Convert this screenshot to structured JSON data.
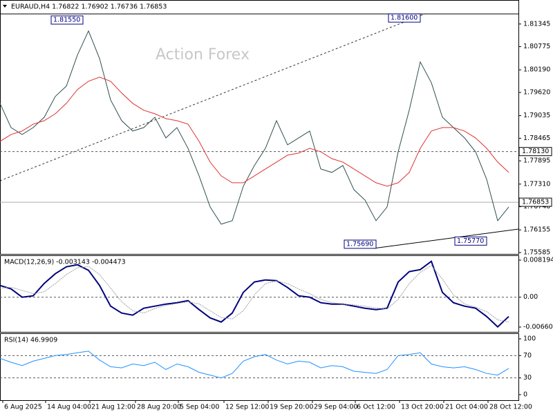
{
  "chart_data": [
    {
      "type": "line",
      "title": "EURAUD,H4  1.76822 1.76902 1.76736 1.76853",
      "watermark": "Action Forex",
      "xlim": [
        0,
        187.5
      ],
      "ylim": [
        1.7555,
        1.8195
      ],
      "yticks": [
        1.81345,
        1.80775,
        {
          "value": 1.8019,
          "label": "1.80190"
        },
        {
          "value": 1.7962,
          "label": "1.79620"
        },
        1.79035,
        1.78465,
        1.77895,
        {
          "value": 1.7731,
          "label": "1.77310"
        },
        {
          "value": 1.7674,
          "label": "1.76740"
        },
        1.76155,
        1.75585
      ],
      "x": [
        0,
        4,
        8,
        12,
        16,
        20,
        24,
        28,
        32,
        36,
        40,
        44,
        48,
        52,
        56,
        60,
        64,
        68,
        72,
        76,
        80,
        84,
        88,
        92,
        96,
        100,
        104,
        108,
        112,
        116,
        120,
        124,
        128,
        132,
        136,
        140,
        144,
        148,
        152,
        156,
        160,
        164,
        168,
        172,
        176,
        180,
        184
      ],
      "series": [
        {
          "color": "#2f4f4f",
          "values": [
            1.79344,
            1.78735,
            1.78561,
            1.78735,
            1.78996,
            1.79518,
            1.79779,
            1.80562,
            1.81171,
            1.80475,
            1.79431,
            1.78909,
            1.78648,
            1.78735,
            1.78996,
            1.78474,
            1.78735,
            1.78213,
            1.77517,
            1.76734,
            1.76299,
            1.76386,
            1.77256,
            1.77778,
            1.78213,
            1.78909,
            1.783,
            1.78474,
            1.78648,
            1.77691,
            1.77604,
            1.77778,
            1.77169,
            1.76908,
            1.76386,
            1.76734,
            1.78126,
            1.7917,
            1.80388,
            1.79866,
            1.78996,
            1.78735,
            1.78474,
            1.78126,
            1.7743,
            1.76386,
            1.76734
          ]
        },
        {
          "color": "#e03030",
          "values": [
            1.78387,
            1.78561,
            1.78648,
            1.78822,
            1.78909,
            1.79083,
            1.79344,
            1.79692,
            1.79901,
            1.80005,
            1.79901,
            1.79605,
            1.79344,
            1.7917,
            1.79083,
            1.78961,
            1.78909,
            1.78822,
            1.78387,
            1.77865,
            1.77517,
            1.77343,
            1.77343,
            1.77517,
            1.77691,
            1.77865,
            1.78039,
            1.78091,
            1.78213,
            1.78126,
            1.77952,
            1.77865,
            1.77691,
            1.77517,
            1.77343,
            1.77256,
            1.77343,
            1.77604,
            1.78213,
            1.78648,
            1.78735,
            1.78735,
            1.78648,
            1.78474,
            1.78213,
            1.77865,
            1.77604
          ]
        }
      ],
      "levels": [
        {
          "value": 1.816,
          "style": "solid"
        },
        {
          "value": 1.7813,
          "label": "1.78130",
          "style": "dashed"
        },
        {
          "value": 1.76853,
          "label": "1.76853",
          "style": "current"
        }
      ],
      "annotations": [
        {
          "x": 30,
          "value": 1.8155,
          "label": "1.81550"
        },
        {
          "x": 152,
          "value": 1.816,
          "label": "1.81600"
        },
        {
          "x": 136,
          "value": 1.7569,
          "label": "1.75690"
        },
        {
          "x": 176,
          "value": 1.7577,
          "label": "1.75770"
        }
      ]
    },
    {
      "type": "line",
      "title": "MACD(12,26,9) -0.003143 -0.004473",
      "xlim": [
        0,
        187.5
      ],
      "ylim": [
        -0.00767,
        0.00926
      ],
      "yticks": [
        0.008194,
        {
          "value": 0,
          "label": "0.00"
        },
        -0.006604
      ],
      "x": [
        0,
        4,
        8,
        12,
        16,
        20,
        24,
        28,
        32,
        36,
        40,
        44,
        48,
        52,
        56,
        60,
        64,
        68,
        72,
        76,
        80,
        84,
        88,
        92,
        96,
        100,
        104,
        108,
        112,
        116,
        120,
        124,
        128,
        132,
        136,
        140,
        144,
        148,
        152,
        156,
        160,
        164,
        168,
        172,
        176,
        180,
        184
      ],
      "series": [
        {
          "color": "#00007f",
          "values": [
            0.00259,
            0.00183,
            0,
            0.00031,
            0.00305,
            0.00519,
            0.00671,
            0.00717,
            0.00595,
            0.00259,
            -0.00198,
            -0.00351,
            -0.00397,
            -0.00244,
            -0.00198,
            -0.00153,
            -0.00122,
            -0.00076,
            -0.00275,
            -0.00458,
            -0.00549,
            -0.00351,
            0.00107,
            0.00336,
            0.00381,
            0.00366,
            0.00214,
            0.00031,
            0,
            -0.00122,
            -0.00153,
            -0.00153,
            -0.00198,
            -0.00244,
            -0.00275,
            -0.00244,
            0.00336,
            0.00564,
            0.0061,
            0.00793,
            0.00107,
            -0.00122,
            -0.00198,
            -0.00244,
            -0.00427,
            -0.00656,
            -0.00427
          ]
        },
        {
          "color": "#a0a0a0",
          "values": [
            0.002,
            0.0022,
            0.0015,
            0.0008,
            0.0012,
            0.003,
            0.005,
            0.0065,
            0.0068,
            0.005,
            0.002,
            -0.001,
            -0.003,
            -0.0035,
            -0.0025,
            -0.0018,
            -0.0014,
            -0.001,
            -0.0015,
            -0.003,
            -0.0045,
            -0.0048,
            -0.003,
            0.0005,
            0.003,
            0.0036,
            0.003,
            0.0018,
            0.0008,
            -0.0005,
            -0.0012,
            -0.0015,
            -0.0017,
            -0.002,
            -0.0024,
            -0.0026,
            -0.0005,
            0.003,
            0.0055,
            0.007,
            0.004,
            0.0005,
            -0.0015,
            -0.0022,
            -0.0032,
            -0.005,
            -0.0055
          ]
        }
      ],
      "levels": [
        {
          "value": 0,
          "style": "dashed"
        }
      ]
    },
    {
      "type": "line",
      "title": "RSI(14) 46.9909",
      "xlim": [
        0,
        187.5
      ],
      "ylim": [
        -10,
        110
      ],
      "yticks": [
        100,
        70,
        30,
        0
      ],
      "x": [
        0,
        4,
        8,
        12,
        16,
        20,
        24,
        28,
        32,
        36,
        40,
        44,
        48,
        52,
        56,
        60,
        64,
        68,
        72,
        76,
        80,
        84,
        88,
        92,
        96,
        100,
        104,
        108,
        112,
        116,
        120,
        124,
        128,
        132,
        136,
        140,
        144,
        148,
        152,
        156,
        160,
        164,
        168,
        172,
        176,
        180,
        184
      ],
      "xticks": [
        {
          "value": 1,
          "label": "6 Aug 2025"
        },
        {
          "value": 16.5,
          "label": "14 Aug 04:00"
        },
        {
          "value": 32.5,
          "label": "21 Aug 12:00"
        },
        {
          "value": 49,
          "label": "28 Aug 20:00"
        },
        {
          "value": 64.5,
          "label": "5 Sep 04:00"
        },
        {
          "value": 81,
          "label": "12 Sep 12:00"
        },
        {
          "value": 97,
          "label": "19 Sep 20:00"
        },
        {
          "value": 113,
          "label": "29 Sep 04:00"
        },
        {
          "value": 128.5,
          "label": "6 Oct 12:00"
        },
        {
          "value": 144.5,
          "label": "13 Oct 20:00"
        },
        {
          "value": 160.5,
          "label": "21 Oct 04:00"
        },
        {
          "value": 176.5,
          "label": "28 Oct 12:00"
        }
      ],
      "series": [
        {
          "color": "#1e90ff",
          "values": [
            65,
            58,
            52,
            60,
            65,
            70,
            72,
            75,
            78,
            62,
            50,
            48,
            55,
            52,
            58,
            45,
            55,
            50,
            40,
            35,
            30,
            38,
            60,
            68,
            72,
            62,
            55,
            60,
            58,
            48,
            52,
            50,
            42,
            40,
            38,
            45,
            70,
            72,
            75,
            55,
            50,
            48,
            50,
            45,
            38,
            35,
            47
          ]
        }
      ],
      "levels": [
        {
          "value": 70,
          "style": "dashed"
        },
        {
          "value": 30,
          "style": "dashed"
        }
      ]
    }
  ]
}
